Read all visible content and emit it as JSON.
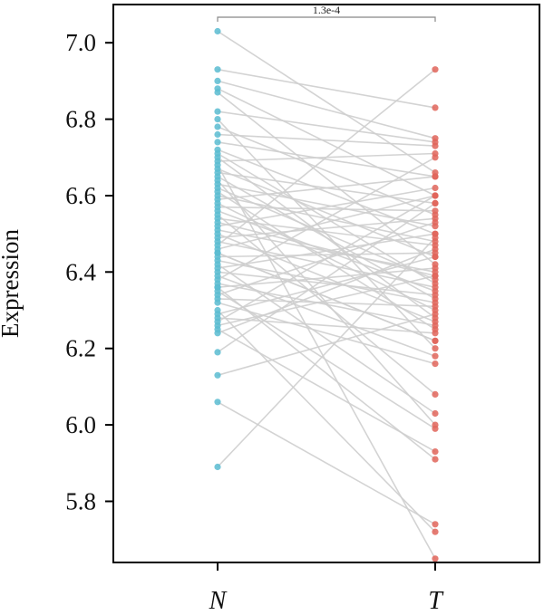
{
  "chart_data": {
    "type": "scatter",
    "title": "",
    "xlabel": "",
    "ylabel": "Expression",
    "categories": [
      "N",
      "T"
    ],
    "ylim": [
      5.64,
      7.1
    ],
    "yticks": [
      "5.8",
      "6.0",
      "6.2",
      "6.4",
      "6.6",
      "6.8",
      "7.0"
    ],
    "grid": false,
    "legend": "none",
    "colors": {
      "N": "#5bbcd1",
      "T": "#e0655a",
      "line": "#cfcfcf"
    },
    "significance": {
      "label": "1.3e-4",
      "between": [
        "N",
        "T"
      ]
    },
    "pairs": [
      [
        7.03,
        6.66
      ],
      [
        6.93,
        6.83
      ],
      [
        6.9,
        6.75
      ],
      [
        6.88,
        6.6
      ],
      [
        6.87,
        6.42
      ],
      [
        6.82,
        6.74
      ],
      [
        6.8,
        6.2
      ],
      [
        6.78,
        6.55
      ],
      [
        6.76,
        6.73
      ],
      [
        6.74,
        6.65
      ],
      [
        6.72,
        6.5
      ],
      [
        6.71,
        6.37
      ],
      [
        6.7,
        6.28
      ],
      [
        6.69,
        6.71
      ],
      [
        6.67,
        6.44
      ],
      [
        6.66,
        6.58
      ],
      [
        6.65,
        6.33
      ],
      [
        6.64,
        6.0
      ],
      [
        6.63,
        6.52
      ],
      [
        6.62,
        6.38
      ],
      [
        6.61,
        6.25
      ],
      [
        6.6,
        6.48
      ],
      [
        6.59,
        6.65
      ],
      [
        6.58,
        6.3
      ],
      [
        6.57,
        6.56
      ],
      [
        6.56,
        6.35
      ],
      [
        6.55,
        6.08
      ],
      [
        6.54,
        6.47
      ],
      [
        6.52,
        6.62
      ],
      [
        6.51,
        6.4
      ],
      [
        6.5,
        6.27
      ],
      [
        6.49,
        6.54
      ],
      [
        6.48,
        6.36
      ],
      [
        6.47,
        6.93
      ],
      [
        6.46,
        6.6
      ],
      [
        6.45,
        6.22
      ],
      [
        6.44,
        6.45
      ],
      [
        6.43,
        6.32
      ],
      [
        6.42,
        6.03
      ],
      [
        6.41,
        6.5
      ],
      [
        6.4,
        6.34
      ],
      [
        6.39,
        6.18
      ],
      [
        6.38,
        6.7
      ],
      [
        6.37,
        6.26
      ],
      [
        6.36,
        6.41
      ],
      [
        6.35,
        5.99
      ],
      [
        6.34,
        6.53
      ],
      [
        6.33,
        6.31
      ],
      [
        6.32,
        6.16
      ],
      [
        6.3,
        5.72
      ],
      [
        6.29,
        6.44
      ],
      [
        6.28,
        6.24
      ],
      [
        6.27,
        6.6
      ],
      [
        6.26,
        6.39
      ],
      [
        6.25,
        5.93
      ],
      [
        6.24,
        6.46
      ],
      [
        6.19,
        6.58
      ],
      [
        6.13,
        6.29
      ],
      [
        6.06,
        5.74
      ],
      [
        5.89,
        6.49
      ],
      [
        6.68,
        5.65
      ],
      [
        6.53,
        6.39
      ],
      [
        6.45,
        6.22
      ],
      [
        6.36,
        5.91
      ]
    ]
  }
}
